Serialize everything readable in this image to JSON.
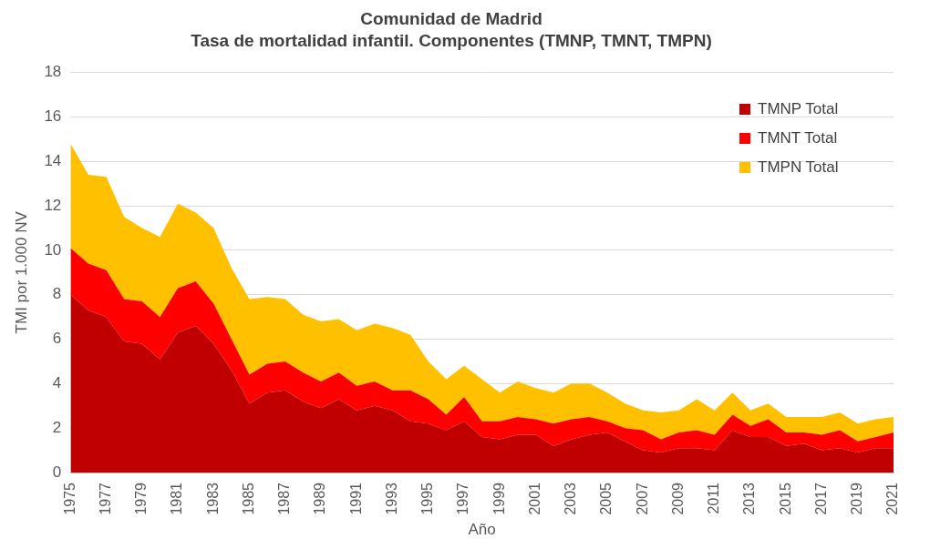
{
  "chart_data": {
    "type": "area",
    "title": "Comunidad de Madrid",
    "subtitle": "Tasa de mortalidad infantil. Componentes (TMNP, TMNT, TMPN)",
    "x_label": "Año",
    "y_label": "TMI por 1.000 NV",
    "categories": [
      "1975",
      null,
      "1977",
      null,
      "1979",
      null,
      "1981",
      null,
      "1983",
      null,
      "1985",
      null,
      "1987",
      null,
      "1989",
      null,
      "1991",
      null,
      "1993",
      null,
      "1995",
      null,
      "1997",
      null,
      "1999",
      null,
      "2001",
      null,
      "2003",
      null,
      "2005",
      null,
      "2007",
      null,
      "2009",
      null,
      "2011",
      null,
      "2013",
      null,
      "2015",
      null,
      "2017",
      null,
      "2019",
      null,
      "2021"
    ],
    "series": [
      {
        "name": "TMNP Total",
        "color": "#c00000",
        "values": [
          8.0,
          7.3,
          7.0,
          5.9,
          5.8,
          5.1,
          6.3,
          6.6,
          5.8,
          4.6,
          3.1,
          3.6,
          3.7,
          3.2,
          2.9,
          3.3,
          2.8,
          3.0,
          2.8,
          2.3,
          2.2,
          1.9,
          2.3,
          1.6,
          1.5,
          1.7,
          1.7,
          1.2,
          1.5,
          1.7,
          1.8,
          1.4,
          1.0,
          0.9,
          1.1,
          1.1,
          1.0,
          1.9,
          1.6,
          1.6,
          1.2,
          1.3,
          1.0,
          1.1,
          0.9,
          1.1,
          1.1
        ]
      },
      {
        "name": "TMNT Total",
        "color": "#ff0000",
        "values": [
          2.1,
          2.1,
          2.1,
          1.9,
          1.9,
          1.9,
          2.0,
          2.0,
          1.8,
          1.4,
          1.3,
          1.3,
          1.3,
          1.3,
          1.2,
          1.2,
          1.1,
          1.1,
          0.9,
          1.4,
          1.1,
          0.7,
          1.1,
          0.7,
          0.8,
          0.8,
          0.7,
          1.0,
          0.9,
          0.8,
          0.5,
          0.6,
          0.9,
          0.6,
          0.7,
          0.8,
          0.7,
          0.7,
          0.5,
          0.8,
          0.6,
          0.5,
          0.7,
          0.8,
          0.5,
          0.5,
          0.7
        ]
      },
      {
        "name": "TMPN Total",
        "color": "#ffc000",
        "values": [
          4.7,
          4.0,
          4.2,
          3.7,
          3.3,
          3.6,
          3.8,
          3.1,
          3.4,
          3.2,
          3.4,
          3.0,
          2.8,
          2.6,
          2.7,
          2.4,
          2.5,
          2.6,
          2.8,
          2.5,
          1.7,
          1.6,
          1.4,
          1.9,
          1.3,
          1.6,
          1.4,
          1.4,
          1.6,
          1.5,
          1.3,
          1.1,
          0.9,
          1.2,
          1.0,
          1.4,
          1.1,
          1.0,
          0.7,
          0.7,
          0.7,
          0.7,
          0.8,
          0.8,
          0.8,
          0.8,
          0.7
        ]
      }
    ],
    "ylim": [
      0,
      18
    ],
    "yticks": [
      0,
      2,
      4,
      6,
      8,
      10,
      12,
      14,
      16,
      18
    ],
    "stacked": true,
    "grid": true,
    "legend": "top right"
  }
}
